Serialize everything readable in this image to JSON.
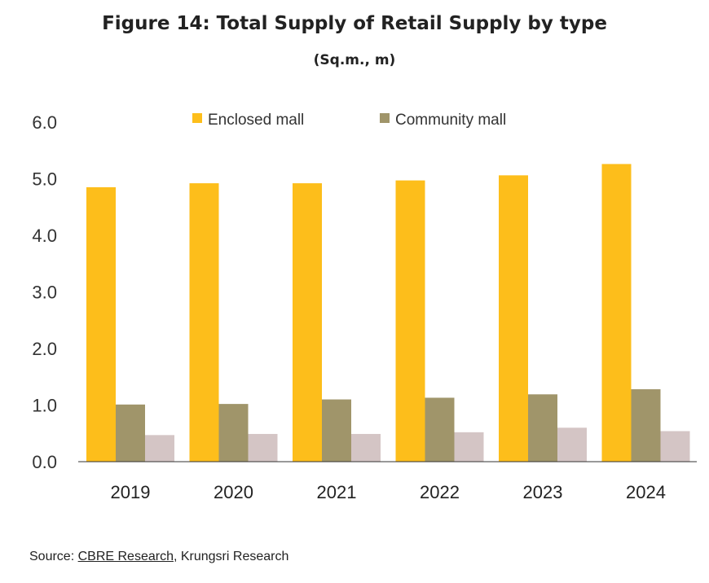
{
  "title": "Figure 14: Total Supply of Retail Supply by type",
  "subtitle": "(Sq.m., m)",
  "source": {
    "prefix": "Source: ",
    "link": "CBRE Research",
    "suffix": ", Krungsri Research"
  },
  "chart_data": {
    "type": "bar",
    "categories": [
      "2019",
      "2020",
      "2021",
      "2022",
      "2023",
      "2024"
    ],
    "series": [
      {
        "name": "Enclosed mall",
        "values": [
          4.85,
          4.92,
          4.92,
          4.97,
          5.06,
          5.26
        ],
        "color": "#FDBE1B"
      },
      {
        "name": "Community mall",
        "values": [
          1.01,
          1.02,
          1.1,
          1.13,
          1.19,
          1.28
        ],
        "color": "#A0956A"
      },
      {
        "values": [
          0.47,
          0.49,
          0.49,
          0.52,
          0.6,
          0.54
        ],
        "color": "#D4C5C5"
      }
    ],
    "yticks": [
      "0.0",
      "1.0",
      "2.0",
      "3.0",
      "4.0",
      "5.0",
      "6.0"
    ],
    "ylim": [
      0,
      6
    ],
    "grid": false,
    "legend_position": "top"
  }
}
